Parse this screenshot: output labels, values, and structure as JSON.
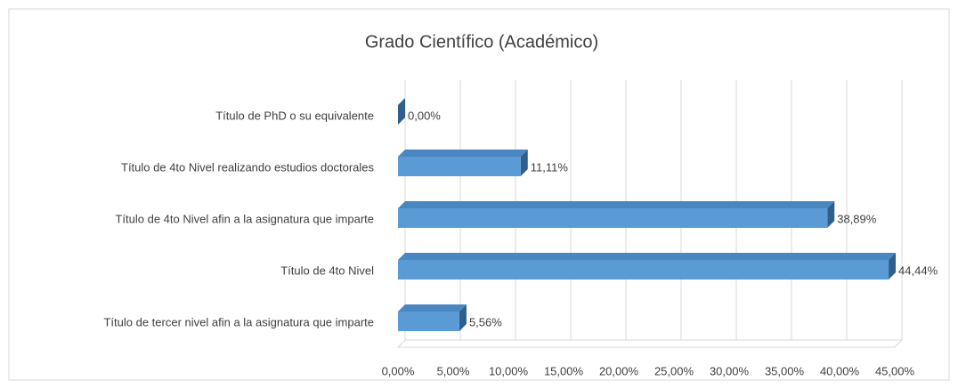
{
  "chart_data": {
    "type": "bar",
    "orientation": "horizontal",
    "title": "Grado Científico  (Académico)",
    "categories": [
      "Título de PhD o su equivalente",
      "Título de 4to Nivel realizando estudios doctorales",
      "Título de 4to Nivel afin a la asignatura que imparte",
      "Título de 4to Nivel",
      "Título de tercer nivel afin a la asignatura que imparte"
    ],
    "values": [
      0,
      11.11,
      38.89,
      44.44,
      5.56
    ],
    "value_labels": [
      "0,00%",
      "11,11%",
      "38,89%",
      "44,44%",
      "5,56%"
    ],
    "color": "#5b9bd5",
    "xlim": [
      0,
      45
    ],
    "xticks": [
      {
        "value": 0,
        "label": "0,00%"
      },
      {
        "value": 5,
        "label": "5,00%"
      },
      {
        "value": 10,
        "label": "10,00%"
      },
      {
        "value": 15,
        "label": "15,00%"
      },
      {
        "value": 20,
        "label": "20,00%"
      },
      {
        "value": 25,
        "label": "25,00%"
      },
      {
        "value": 30,
        "label": "30,00%"
      },
      {
        "value": 35,
        "label": "35,00%"
      },
      {
        "value": 40,
        "label": "40,00%"
      },
      {
        "value": 45,
        "label": "45,00%"
      }
    ],
    "grid": true
  }
}
